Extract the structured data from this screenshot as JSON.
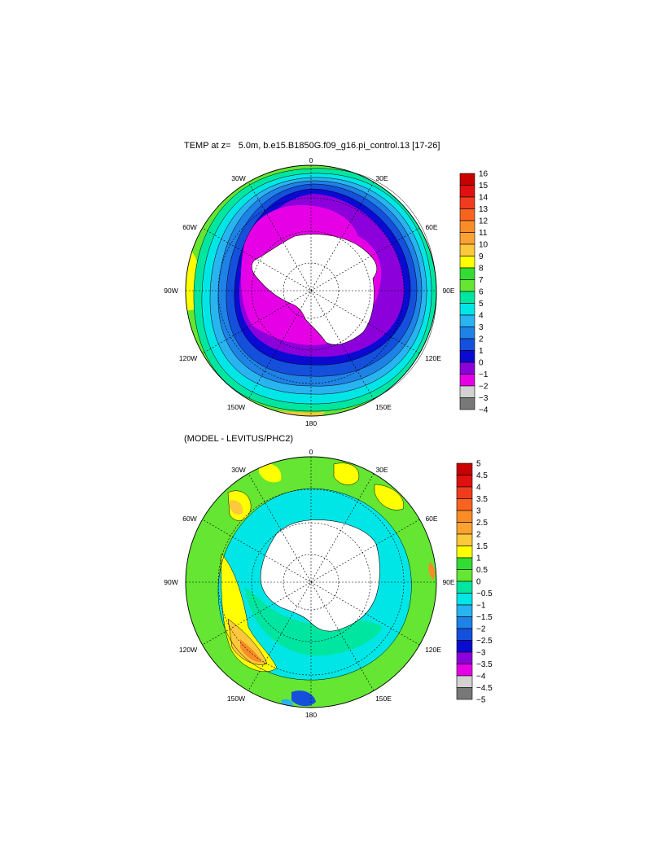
{
  "panels": [
    {
      "title": "TEMP at z=   5.0m, b.e15.B1850G.f09_g16.pi_control.13 [17-26]",
      "lon_labels": [
        "0",
        "30E",
        "60E",
        "90E",
        "120E",
        "150E",
        "180",
        "150W",
        "120W",
        "90W",
        "60W",
        "30W"
      ],
      "colorbar": {
        "levels": [
          "16",
          "15",
          "14",
          "13",
          "12",
          "11",
          "10",
          "9",
          "8",
          "7",
          "6",
          "5",
          "4",
          "3",
          "2",
          "1",
          "0",
          "−1",
          "−2",
          "−3",
          "−4"
        ],
        "colors": [
          "#c80000",
          "#e01010",
          "#f03c1e",
          "#f86420",
          "#fa8c28",
          "#fca232",
          "#fcc83c",
          "#ffff00",
          "#32dc32",
          "#64e632",
          "#00e6a0",
          "#00e6e6",
          "#28b4f0",
          "#1e82e6",
          "#1450dc",
          "#0a0ad2",
          "#8c00dc",
          "#e600e6",
          "#d2d2d2",
          "#787878"
        ]
      }
    },
    {
      "title": "(MODEL - LEVITUS/PHC2)",
      "lon_labels": [
        "0",
        "30E",
        "60E",
        "90E",
        "120E",
        "150E",
        "180",
        "150W",
        "120W",
        "90W",
        "60W",
        "30W"
      ],
      "colorbar": {
        "levels": [
          "5",
          "4.5",
          "4",
          "3.5",
          "3",
          "2.5",
          "2",
          "1.5",
          "1",
          "0.5",
          "0",
          "−0.5",
          "−1",
          "−1.5",
          "−2",
          "−2.5",
          "−3",
          "−3.5",
          "−4",
          "−4.5",
          "−5"
        ],
        "colors": [
          "#c80000",
          "#e01010",
          "#f03c1e",
          "#f86420",
          "#fa8c28",
          "#fca232",
          "#fcc83c",
          "#ffff00",
          "#32dc32",
          "#64e632",
          "#00e6a0",
          "#00e6e6",
          "#28b4f0",
          "#1e82e6",
          "#1450dc",
          "#0a0ad2",
          "#8c00dc",
          "#e600e6",
          "#d2d2d2",
          "#787878"
        ]
      }
    }
  ]
}
